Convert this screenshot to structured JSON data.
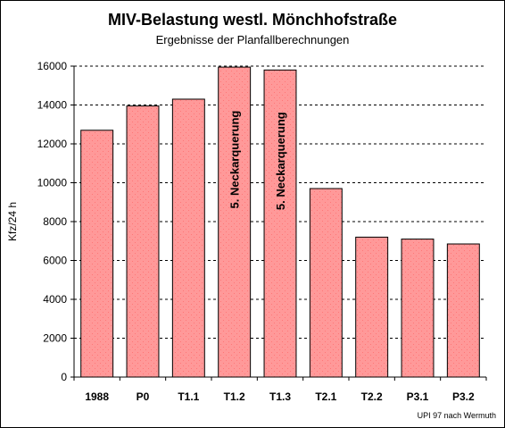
{
  "chart_data": {
    "type": "bar",
    "title": "MIV-Belastung westl. Mönchhofstraße",
    "subtitle": "Ergebnisse der Planfallberechnungen",
    "xlabel": "",
    "ylabel": "Kfz/24 h",
    "ylim": [
      0,
      16000
    ],
    "yticks": [
      0,
      2000,
      4000,
      6000,
      8000,
      10000,
      12000,
      14000,
      16000
    ],
    "grid": true,
    "categories": [
      "1988",
      "P0",
      "T1.1",
      "T1.2",
      "T1.3",
      "T2.1",
      "T2.2",
      "P3.1",
      "P3.2"
    ],
    "values": [
      12700,
      13950,
      14300,
      15950,
      15800,
      9700,
      7200,
      7100,
      6850
    ],
    "bar_annotations": [
      {
        "category": "T1.2",
        "text": "5. Neckarquerung"
      },
      {
        "category": "T1.3",
        "text": "5. Neckarquerung"
      }
    ],
    "bar_color": "#ff9999",
    "source_note": "UPI 97 nach Wermuth"
  }
}
